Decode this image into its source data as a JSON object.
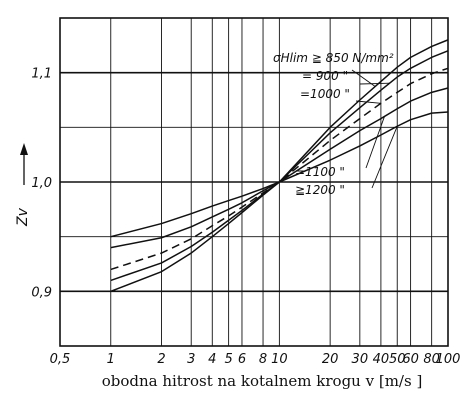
{
  "chart_data": {
    "type": "line",
    "xscale": "log",
    "xlim": [
      0.5,
      100
    ],
    "ylim": [
      0.85,
      1.15
    ],
    "x_ticks": [
      0.5,
      1,
      2,
      3,
      4,
      5,
      6,
      8,
      10,
      20,
      30,
      40,
      50,
      60,
      80,
      100
    ],
    "x_tick_labels": [
      "0,5",
      "1",
      "2",
      "3",
      "4",
      "5",
      "6",
      "8",
      "10",
      "20",
      "30",
      "40",
      "50",
      "60",
      "80",
      "100"
    ],
    "y_ticks": [
      0.9,
      1.0,
      1.1
    ],
    "y_tick_labels": [
      "0,9",
      "1,0",
      "1,1"
    ],
    "xlabel": "obodna hitrost na kotalnem krogu v [m/s ]",
    "ylabel": "Zv",
    "grid": true,
    "annotations": {
      "sigma_label": "σHlim ≧ 850 N/mm²",
      "label_900": "= 900    \"",
      "label_1000": "=1000    \"",
      "label_1100": "=1100    \"",
      "label_1200": "≧1200    \""
    },
    "series": [
      {
        "name": "850",
        "style": "solid",
        "x": [
          1,
          2,
          3,
          4,
          5,
          6,
          8,
          10,
          20,
          30,
          40,
          50,
          60,
          80,
          100
        ],
        "y": [
          0.9,
          0.918,
          0.935,
          0.95,
          0.962,
          0.972,
          0.988,
          1.0,
          1.05,
          1.075,
          1.092,
          1.105,
          1.114,
          1.124,
          1.13
        ]
      },
      {
        "name": "900",
        "style": "solid",
        "x": [
          1,
          2,
          3,
          4,
          5,
          6,
          8,
          10,
          20,
          30,
          40,
          50,
          60,
          80,
          100
        ],
        "y": [
          0.91,
          0.926,
          0.941,
          0.954,
          0.965,
          0.974,
          0.989,
          1.0,
          1.045,
          1.068,
          1.084,
          1.096,
          1.104,
          1.114,
          1.12
        ]
      },
      {
        "name": "1000",
        "style": "dashed",
        "x": [
          1,
          2,
          3,
          4,
          5,
          6,
          8,
          10,
          20,
          30,
          40,
          50,
          60,
          80,
          100
        ],
        "y": [
          0.92,
          0.935,
          0.948,
          0.96,
          0.969,
          0.977,
          0.99,
          1.0,
          1.038,
          1.058,
          1.072,
          1.082,
          1.09,
          1.099,
          1.104
        ]
      },
      {
        "name": "1100",
        "style": "solid",
        "x": [
          1,
          2,
          3,
          4,
          5,
          6,
          8,
          10,
          20,
          30,
          40,
          50,
          60,
          80,
          100
        ],
        "y": [
          0.94,
          0.949,
          0.959,
          0.968,
          0.975,
          0.981,
          0.992,
          1.0,
          1.03,
          1.047,
          1.058,
          1.067,
          1.074,
          1.082,
          1.086
        ]
      },
      {
        "name": "1200",
        "style": "solid",
        "x": [
          1,
          2,
          3,
          4,
          5,
          6,
          8,
          10,
          20,
          30,
          40,
          50,
          60,
          80,
          100
        ],
        "y": [
          0.95,
          0.962,
          0.971,
          0.978,
          0.983,
          0.987,
          0.994,
          1.0,
          1.02,
          1.033,
          1.043,
          1.051,
          1.057,
          1.063,
          1.064
        ]
      }
    ]
  }
}
